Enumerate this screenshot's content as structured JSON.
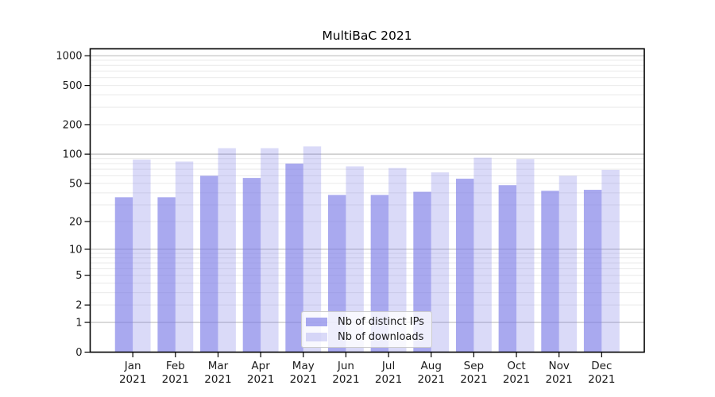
{
  "chart_data": {
    "type": "bar",
    "title": "MultiBaC 2021",
    "year_label": "2021",
    "categories": [
      "Jan",
      "Feb",
      "Mar",
      "Apr",
      "May",
      "Jun",
      "Jul",
      "Aug",
      "Sep",
      "Oct",
      "Nov",
      "Dec"
    ],
    "series": [
      {
        "name": "Nb of distinct IPs",
        "key": "distinct-ips",
        "values": [
          36,
          36,
          60,
          57,
          80,
          38,
          38,
          41,
          56,
          48,
          42,
          43
        ]
      },
      {
        "name": "Nb of downloads",
        "key": "downloads",
        "values": [
          88,
          84,
          115,
          115,
          120,
          75,
          72,
          65,
          92,
          89,
          60,
          69
        ]
      }
    ],
    "y_ticks": [
      0,
      1,
      2,
      5,
      10,
      20,
      50,
      100,
      200,
      500,
      1000
    ],
    "y_scale": "log1p",
    "ylim": [
      0,
      1175
    ],
    "grid": true,
    "grid_major_at": [
      1,
      10,
      100,
      1000
    ],
    "legend_position": "lower center",
    "colors": {
      "bar_base": "#7878e6",
      "distinct_ips_opacity": 0.64,
      "downloads_opacity": 0.27,
      "grid_major": "#bfbfbf",
      "grid_minor": "#e9e9e9",
      "axis": "#000000",
      "text": "#1a1a1a",
      "legend_border": "#cccccc"
    }
  }
}
